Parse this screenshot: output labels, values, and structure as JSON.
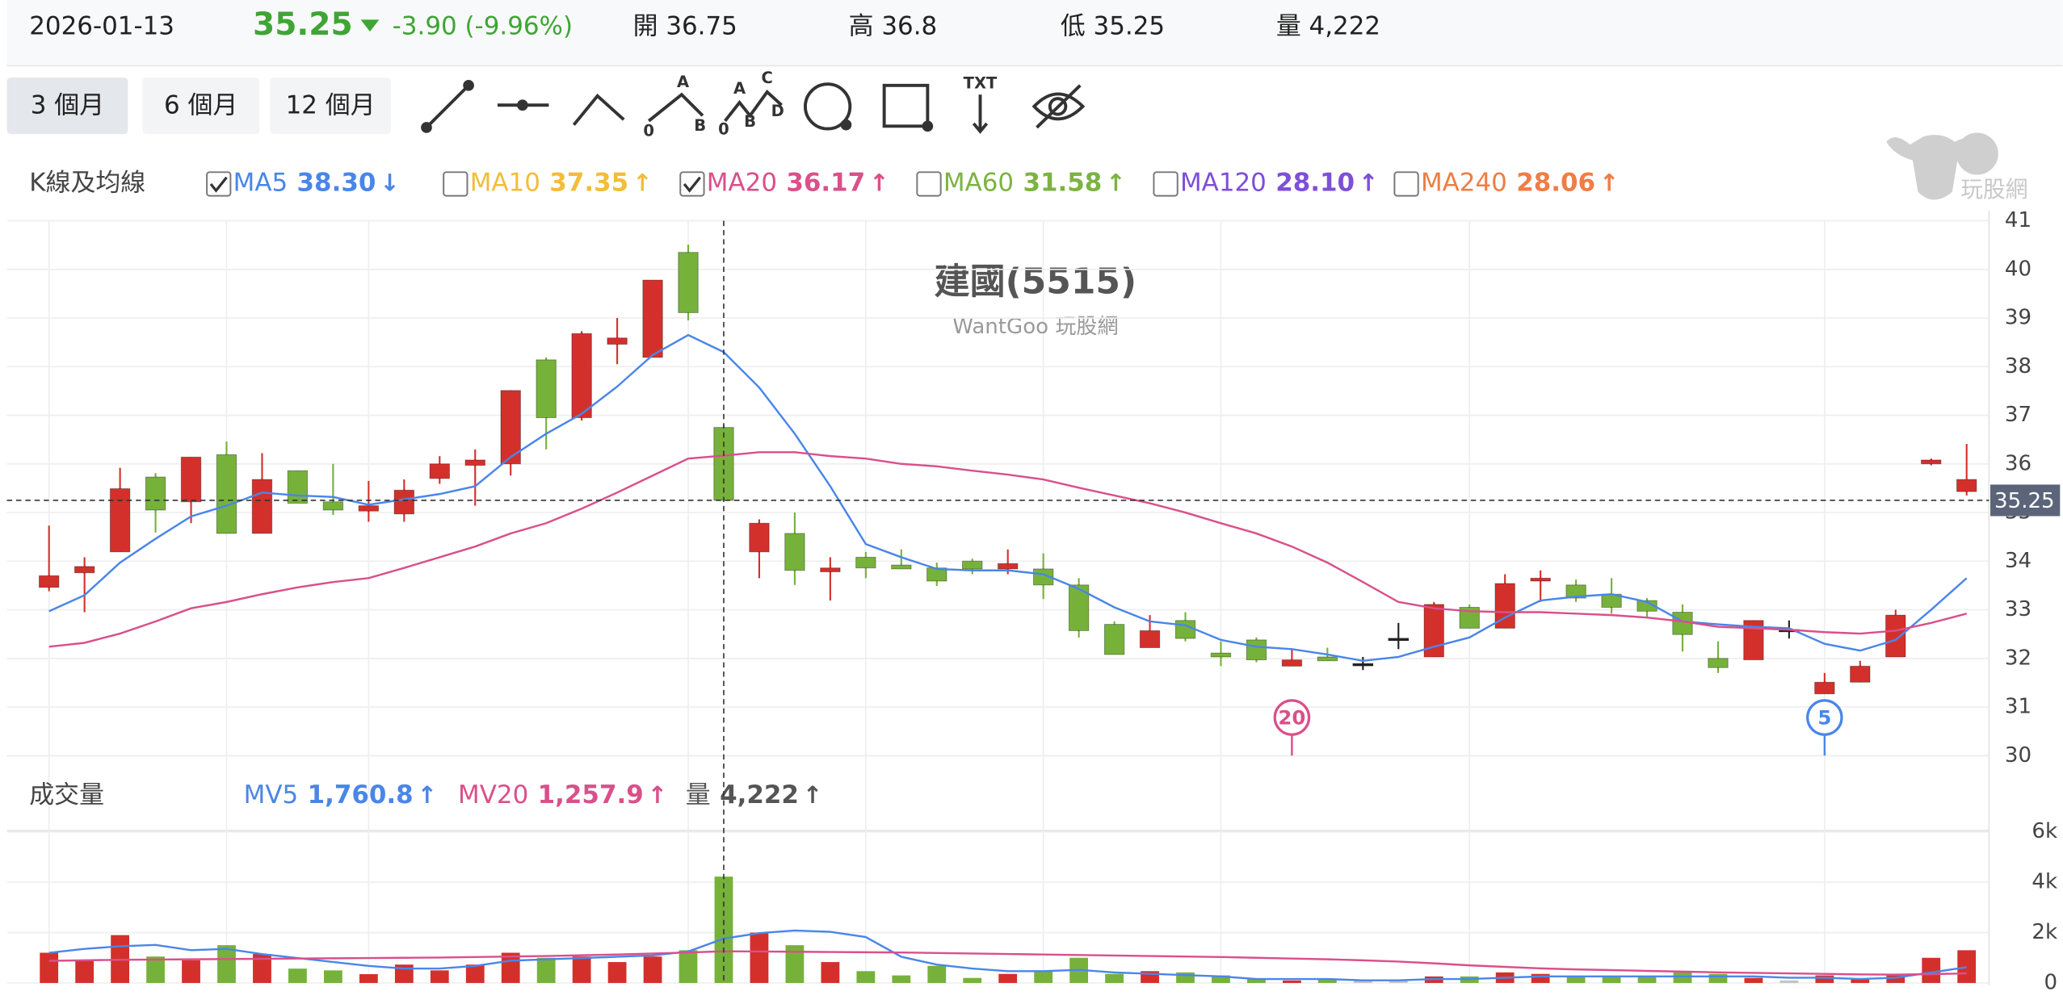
{
  "header": {
    "date": "2026-01-13",
    "price": "35.25",
    "change": "-3.90 (-9.96%)",
    "color": "#3fa535",
    "fields": [
      {
        "label": "開",
        "value": "36.75"
      },
      {
        "label": "高",
        "value": "36.8"
      },
      {
        "label": "低",
        "value": "35.25"
      },
      {
        "label": "量",
        "value": "4,222"
      }
    ]
  },
  "toolbar": {
    "ranges": [
      "3 個月",
      "6 個月",
      "12 個月"
    ],
    "selected": 0,
    "tool_labels": [
      "A",
      "0",
      "B",
      "C",
      "A",
      "0",
      "B",
      "D",
      "TXT"
    ]
  },
  "logo_text": "玩股網",
  "chart_data": [
    {
      "type": "candlestick",
      "title": "建國(5515)",
      "subtitle": "WantGoo 玩股網",
      "panel_label": "K線及均線",
      "up_color": "#d3302c",
      "down_color": "#76b23a",
      "flat_color": "#222222",
      "legend": [
        {
          "name": "MA5",
          "value": "38.30",
          "arrow": "↓",
          "color": "#4a86e8",
          "checked": true,
          "values": [
            32.97,
            33.3,
            33.97,
            34.46,
            34.92,
            35.14,
            35.41,
            35.35,
            35.32,
            35.16,
            35.27,
            35.38,
            35.54,
            36.14,
            36.62,
            37.03,
            37.59,
            38.24,
            38.65,
            38.3,
            37.57,
            36.62,
            35.54,
            34.35,
            34.08,
            33.84,
            33.81,
            33.81,
            33.73,
            33.43,
            33.05,
            32.76,
            32.68,
            32.38,
            32.24,
            32.19,
            32.08,
            31.95,
            32.03,
            32.24,
            32.43,
            32.84,
            33.19,
            33.27,
            33.32,
            33.16,
            32.76,
            32.7,
            32.65,
            32.62,
            32.3,
            32.16,
            32.38,
            33.0,
            33.65
          ]
        },
        {
          "name": "MA10",
          "value": "37.35",
          "arrow": "↑",
          "color": "#f2bd3a",
          "checked": false
        },
        {
          "name": "MA20",
          "value": "36.17",
          "arrow": "↑",
          "color": "#d9508a",
          "checked": true,
          "values": [
            32.24,
            32.32,
            32.51,
            32.76,
            33.03,
            33.16,
            33.32,
            33.46,
            33.57,
            33.65,
            33.86,
            34.08,
            34.3,
            34.57,
            34.78,
            35.08,
            35.41,
            35.76,
            36.11,
            36.17,
            36.24,
            36.24,
            36.16,
            36.11,
            36.0,
            35.95,
            35.86,
            35.78,
            35.68,
            35.51,
            35.35,
            35.19,
            35.0,
            34.78,
            34.57,
            34.3,
            33.97,
            33.57,
            33.16,
            33.03,
            32.97,
            32.95,
            32.95,
            32.92,
            32.89,
            32.84,
            32.76,
            32.65,
            32.62,
            32.59,
            32.54,
            32.51,
            32.57,
            32.73,
            32.92
          ]
        },
        {
          "name": "MA60",
          "value": "31.58",
          "arrow": "↑",
          "color": "#7cb342",
          "checked": false
        },
        {
          "name": "MA120",
          "value": "28.10",
          "arrow": "↑",
          "color": "#7e4fd8",
          "checked": false
        },
        {
          "name": "MA240",
          "value": "28.06",
          "arrow": "↑",
          "color": "#ef7d45",
          "checked": false
        }
      ],
      "open": [
        33.46,
        33.76,
        34.19,
        35.73,
        35.22,
        36.19,
        34.57,
        35.86,
        35.22,
        35.03,
        34.97,
        35.7,
        35.97,
        36.0,
        38.14,
        36.95,
        38.46,
        38.19,
        40.35,
        36.75,
        34.19,
        34.57,
        33.78,
        34.08,
        33.92,
        33.86,
        34.0,
        33.84,
        33.84,
        33.51,
        32.7,
        32.22,
        32.78,
        32.11,
        32.38,
        31.84,
        32.03,
        31.89,
        32.41,
        32.03,
        33.05,
        32.62,
        33.59,
        33.51,
        33.32,
        33.19,
        32.95,
        32.0,
        31.97,
        32.59,
        31.27,
        31.51,
        32.03,
        36.0,
        35.43
      ],
      "high": [
        34.73,
        34.08,
        35.92,
        35.81,
        36.14,
        36.46,
        36.22,
        35.86,
        36.0,
        35.65,
        35.68,
        36.16,
        36.3,
        37.51,
        38.19,
        38.73,
        39.0,
        39.78,
        40.51,
        36.8,
        34.86,
        35.0,
        34.08,
        34.19,
        34.24,
        33.97,
        34.05,
        34.24,
        34.16,
        33.65,
        32.76,
        32.89,
        32.95,
        32.35,
        32.43,
        32.19,
        32.22,
        32.03,
        32.73,
        33.16,
        33.11,
        33.73,
        33.81,
        33.62,
        33.65,
        33.24,
        33.11,
        32.35,
        32.78,
        32.78,
        31.7,
        31.95,
        33.0,
        36.11,
        36.41
      ],
      "low": [
        33.38,
        32.95,
        34.19,
        34.59,
        34.78,
        34.57,
        34.57,
        35.19,
        34.95,
        34.81,
        34.81,
        35.59,
        35.14,
        35.76,
        36.3,
        36.89,
        38.05,
        38.19,
        38.95,
        35.25,
        33.65,
        33.51,
        33.19,
        33.65,
        33.84,
        33.49,
        33.73,
        33.73,
        33.22,
        32.43,
        32.08,
        32.22,
        32.35,
        31.84,
        31.92,
        31.84,
        31.95,
        31.76,
        32.19,
        32.03,
        32.62,
        32.62,
        33.16,
        33.16,
        32.92,
        32.84,
        32.14,
        31.7,
        31.97,
        32.41,
        31.27,
        31.51,
        32.03,
        35.97,
        35.35
      ],
      "close": [
        33.7,
        33.89,
        35.49,
        35.05,
        36.14,
        34.57,
        35.68,
        35.19,
        35.05,
        35.14,
        35.46,
        36.0,
        36.08,
        37.51,
        36.95,
        38.68,
        38.59,
        39.78,
        39.11,
        35.25,
        34.78,
        33.81,
        33.86,
        33.86,
        33.84,
        33.59,
        33.84,
        33.95,
        33.51,
        32.57,
        32.08,
        32.57,
        32.41,
        32.03,
        31.97,
        31.97,
        31.95,
        31.89,
        32.41,
        33.11,
        32.62,
        33.54,
        33.65,
        33.24,
        33.05,
        32.97,
        32.49,
        31.81,
        32.78,
        32.59,
        31.51,
        31.84,
        32.89,
        36.08,
        35.68
      ],
      "ylim": [
        30,
        41
      ],
      "yticks": [
        30,
        31,
        32,
        33,
        34,
        35,
        36,
        37,
        38,
        39,
        40,
        41
      ],
      "grid": true,
      "crosshair": {
        "index": 19,
        "value": 35.25,
        "color": "#5b6479"
      },
      "markers": [
        {
          "index": 35,
          "label": "20",
          "color": "#d9508a"
        },
        {
          "index": 50,
          "label": "5",
          "color": "#4a86e8"
        }
      ]
    },
    {
      "type": "bar",
      "panel_label": "成交量",
      "legend": [
        {
          "name": "MV5",
          "value": "1,760.8",
          "arrow": "↑",
          "color": "#4a86e8",
          "values": [
            1198,
            1354,
            1458,
            1510,
            1302,
            1354,
            1146,
            990,
            833,
            677,
            573,
            573,
            677,
            885,
            938,
            990,
            1042,
            1094,
            1250,
            1760.8,
            1979,
            2083,
            2031,
            1823,
            1042,
            729,
            573,
            469,
            469,
            521,
            417,
            365,
            313,
            260,
            156,
            156,
            156,
            104,
            104,
            156,
            156,
            208,
            260,
            260,
            260,
            260,
            260,
            260,
            260,
            208,
            208,
            156,
            208,
            417,
            625
          ]
        },
        {
          "name": "MV20",
          "value": "1,257.9",
          "arrow": "↑",
          "color": "#d9508a",
          "values": [
            880,
            900,
            920,
            930,
            940,
            950,
            960,
            970,
            980,
            990,
            1000,
            1010,
            1030,
            1050,
            1070,
            1100,
            1130,
            1170,
            1210,
            1257.9,
            1250,
            1240,
            1230,
            1220,
            1210,
            1190,
            1170,
            1150,
            1130,
            1110,
            1090,
            1070,
            1050,
            1030,
            1000,
            970,
            940,
            900,
            850,
            780,
            700,
            640,
            580,
            540,
            510,
            480,
            450,
            420,
            400,
            380,
            360,
            340,
            330,
            350,
            380
          ]
        },
        {
          "name": "量",
          "value": "4,222",
          "arrow": "↑",
          "color": "#555555"
        }
      ],
      "values": [
        1200,
        900,
        1900,
        1050,
        900,
        1500,
        1150,
        570,
        500,
        350,
        730,
        500,
        730,
        1200,
        1000,
        1050,
        830,
        1050,
        1300,
        4222,
        2000,
        1500,
        830,
        470,
        300,
        680,
        200,
        360,
        470,
        1000,
        360,
        470,
        420,
        300,
        160,
        100,
        160,
        100,
        100,
        260,
        260,
        420,
        360,
        260,
        260,
        260,
        420,
        360,
        200,
        100,
        300,
        160,
        300,
        1000,
        1300
      ],
      "flat_color": "#c4c4c4",
      "ylim": [
        0,
        6000
      ],
      "yticks": [
        0,
        {
          "value": 2000,
          "label": "2k"
        },
        {
          "value": 4000,
          "label": "4k"
        },
        {
          "value": 6000,
          "label": "6k"
        }
      ],
      "grid": true
    }
  ]
}
